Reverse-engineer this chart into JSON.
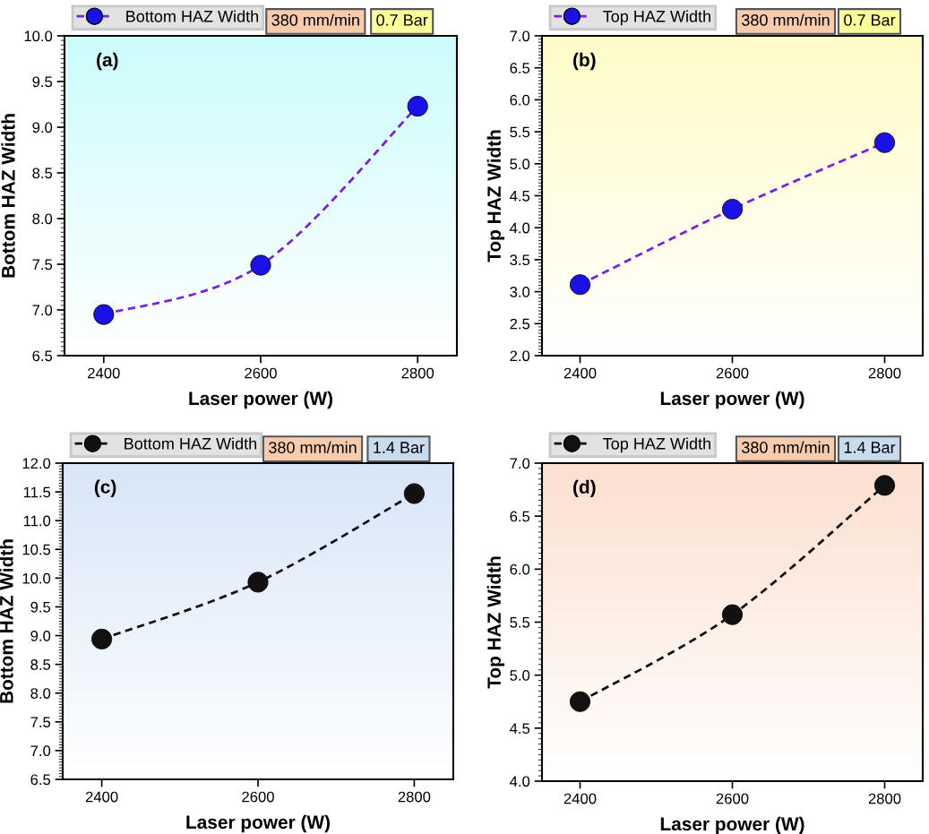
{
  "chart_data": [
    {
      "type": "line",
      "xlabel": "Laser power (W)",
      "ylabel": "Bottom HAZ Width",
      "x": [
        2400,
        2600,
        2800
      ],
      "xlim": [
        2350,
        2850
      ],
      "xticks": [
        2400,
        2600,
        2800
      ],
      "ylim": [
        6.5,
        10.0
      ],
      "yticks": [
        {
          "value": 6.5,
          "label": "6.5"
        },
        {
          "value": 7.0,
          "label": "7.0"
        },
        {
          "value": 7.5,
          "label": "7.5"
        },
        {
          "value": 8.0,
          "label": "8.0"
        },
        {
          "value": 8.5,
          "label": "8.5"
        },
        {
          "value": 9.0,
          "label": "9.0"
        },
        {
          "value": 9.5,
          "label": "9.5"
        },
        {
          "value": 10.0,
          "label": "10.0"
        }
      ],
      "marker": "circle",
      "line_style": "dashed",
      "legend": "top left",
      "grid": false,
      "annotations": [
        "(a)",
        "380 mm/min",
        "0.7 Bar"
      ],
      "series": [
        {
          "name": "Bottom HAZ Width",
          "color": "#1a10e8",
          "values": [
            6.95,
            7.49,
            9.23
          ]
        }
      ]
    },
    {
      "type": "line",
      "xlabel": "Laser power (W)",
      "ylabel": "Top HAZ Width",
      "x": [
        2400,
        2600,
        2800
      ],
      "xlim": [
        2350,
        2850
      ],
      "xticks": [
        2400,
        2600,
        2800
      ],
      "ylim": [
        2.0,
        7.0
      ],
      "yticks": [
        {
          "value": 2.0,
          "label": "2.0"
        },
        {
          "value": 2.5,
          "label": "2.5"
        },
        {
          "value": 3.0,
          "label": "3.0"
        },
        {
          "value": 3.5,
          "label": "3.5"
        },
        {
          "value": 4.0,
          "label": "4.0"
        },
        {
          "value": 4.5,
          "label": "4.5"
        },
        {
          "value": 5.0,
          "label": "5.0"
        },
        {
          "value": 5.5,
          "label": "5.5"
        },
        {
          "value": 6.0,
          "label": "6.0"
        },
        {
          "value": 6.5,
          "label": "6.5"
        },
        {
          "value": 7.0,
          "label": "7.0"
        }
      ],
      "marker": "circle",
      "line_style": "dashed",
      "legend": "top left",
      "grid": false,
      "annotations": [
        "(b)",
        "380 mm/min",
        "0.7 Bar"
      ],
      "series": [
        {
          "name": "Top HAZ Width",
          "color": "#1a10e8",
          "values": [
            3.11,
            4.29,
            5.33
          ]
        }
      ]
    },
    {
      "type": "line",
      "xlabel": "Laser power (W)",
      "ylabel": "Bottom HAZ Width",
      "x": [
        2400,
        2600,
        2800
      ],
      "xlim": [
        2350,
        2850
      ],
      "xticks": [
        2400,
        2600,
        2800
      ],
      "ylim": [
        6.5,
        12.0
      ],
      "yticks": [
        {
          "value": 6.5,
          "label": "6.5"
        },
        {
          "value": 7.0,
          "label": "7.0"
        },
        {
          "value": 7.5,
          "label": "7.5"
        },
        {
          "value": 8.0,
          "label": "8.0"
        },
        {
          "value": 8.5,
          "label": "8.5"
        },
        {
          "value": 9.0,
          "label": "9.0"
        },
        {
          "value": 9.5,
          "label": "9.5"
        },
        {
          "value": 10.0,
          "label": "10.0"
        },
        {
          "value": 10.5,
          "label": "10.5"
        },
        {
          "value": 11.0,
          "label": "11.0"
        },
        {
          "value": 11.5,
          "label": "11.5"
        },
        {
          "value": 12.0,
          "label": "12.0"
        }
      ],
      "marker": "circle",
      "line_style": "dashed",
      "legend": "top left",
      "grid": false,
      "annotations": [
        "(c)",
        "380 mm/min",
        "1.4 Bar"
      ],
      "series": [
        {
          "name": "Bottom HAZ Width",
          "color": "#111111",
          "values": [
            8.94,
            9.93,
            11.47
          ]
        }
      ]
    },
    {
      "type": "line",
      "xlabel": "Laser power (W)",
      "ylabel": "Top HAZ Width",
      "x": [
        2400,
        2600,
        2800
      ],
      "xlim": [
        2350,
        2850
      ],
      "xticks": [
        2400,
        2600,
        2800
      ],
      "ylim": [
        4.0,
        7.0
      ],
      "yticks": [
        {
          "value": 4.0,
          "label": "4.0"
        },
        {
          "value": 4.5,
          "label": "4.5"
        },
        {
          "value": 5.0,
          "label": "5.0"
        },
        {
          "value": 5.5,
          "label": "5.5"
        },
        {
          "value": 6.0,
          "label": "6.0"
        },
        {
          "value": 6.5,
          "label": "6.5"
        },
        {
          "value": 7.0,
          "label": "7.0"
        }
      ],
      "marker": "circle",
      "line_style": "dashed",
      "legend": "top left",
      "grid": false,
      "annotations": [
        "(d)",
        "380 mm/min",
        "1.4 Bar"
      ],
      "series": [
        {
          "name": "Top HAZ Width",
          "color": "#111111",
          "values": [
            4.75,
            5.57,
            6.79
          ]
        }
      ]
    }
  ]
}
